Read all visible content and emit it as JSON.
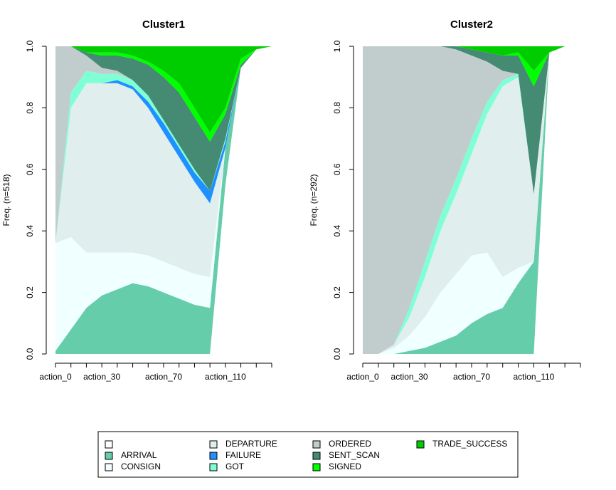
{
  "chart_data": [
    {
      "type": "area",
      "title": "Cluster1",
      "ylabel": "Freq. (n=518)",
      "x": [
        0,
        10,
        20,
        30,
        40,
        50,
        60,
        70,
        80,
        90,
        100,
        110,
        120,
        130,
        140
      ],
      "xlim": [
        0,
        140
      ],
      "xticks": [
        {
          "value": 0,
          "label": "action_0"
        },
        {
          "value": 10,
          "label": null
        },
        {
          "value": 20,
          "label": null
        },
        {
          "value": 30,
          "label": "action_30"
        },
        {
          "value": 40,
          "label": null
        },
        {
          "value": 50,
          "label": null
        },
        {
          "value": 60,
          "label": null
        },
        {
          "value": 70,
          "label": "action_70"
        },
        {
          "value": 80,
          "label": null
        },
        {
          "value": 90,
          "label": null
        },
        {
          "value": 100,
          "label": null
        },
        {
          "value": 110,
          "label": "action_110"
        },
        {
          "value": 120,
          "label": null
        },
        {
          "value": 130,
          "label": null
        },
        {
          "value": 140,
          "label": null
        }
      ],
      "ylim": [
        0,
        1
      ],
      "yticks": [
        {
          "value": 0,
          "label": "0.0"
        },
        0.2,
        0.4,
        0.6,
        0.8,
        {
          "value": 1,
          "label": "1.0"
        }
      ],
      "series": [
        {
          "name": null,
          "color": "#ffffff",
          "values": [
            0,
            0,
            0,
            0,
            0,
            0,
            0,
            0,
            0,
            0,
            0,
            0.55,
            0.93,
            0.99,
            1
          ]
        },
        {
          "name": "ARRIVAL",
          "color": "#66cdaa",
          "values": [
            0.01,
            0.08,
            0.15,
            0.19,
            0.21,
            0.23,
            0.22,
            0.2,
            0.18,
            0.16,
            0.15,
            0.12,
            0,
            0,
            0
          ]
        },
        {
          "name": "CONSIGN",
          "color": "#f0ffff",
          "values": [
            0.35,
            0.3,
            0.18,
            0.14,
            0.12,
            0.1,
            0.1,
            0.1,
            0.1,
            0.1,
            0.1,
            0,
            0,
            0,
            0
          ]
        },
        {
          "name": "DEPARTURE",
          "color": "#e0eeee",
          "values": [
            0,
            0.42,
            0.55,
            0.55,
            0.55,
            0.53,
            0.48,
            0.42,
            0.36,
            0.3,
            0.24,
            0,
            0,
            0,
            0
          ]
        },
        {
          "name": "FAILURE",
          "color": "#1e90ff",
          "values": [
            0,
            0,
            0,
            0,
            0.01,
            0.01,
            0.02,
            0.03,
            0.03,
            0.03,
            0.04,
            0.02,
            0,
            0,
            0
          ]
        },
        {
          "name": "GOT",
          "color": "#7fffd4",
          "values": [
            0,
            0.05,
            0.04,
            0.03,
            0.02,
            0.02,
            0.02,
            0.01,
            0.01,
            0.01,
            0,
            0.01,
            0,
            0,
            0
          ]
        },
        {
          "name": "ORDERED",
          "color": "#c1cdcd",
          "values": [
            0.64,
            0.15,
            0.05,
            0.02,
            0.01,
            0,
            0,
            0,
            0,
            0,
            0,
            0,
            0,
            0,
            0
          ]
        },
        {
          "name": "SENT_SCAN",
          "color": "#458b74",
          "values": [
            0,
            0,
            0.01,
            0.04,
            0.05,
            0.07,
            0.1,
            0.14,
            0.17,
            0.17,
            0.16,
            0.08,
            0.01,
            0,
            0
          ]
        },
        {
          "name": "SIGNED",
          "color": "#00ff00",
          "values": [
            0,
            0,
            0,
            0.01,
            0.01,
            0.01,
            0.01,
            0.02,
            0.03,
            0.03,
            0.03,
            0.02,
            0.02,
            0,
            0
          ]
        },
        {
          "name": "TRADE_SUCCESS",
          "color": "#00cd00",
          "values": [
            0,
            0,
            0.02,
            0.02,
            0.02,
            0.03,
            0.05,
            0.08,
            0.12,
            0.2,
            0.28,
            0.2,
            0.04,
            0.01,
            0
          ]
        }
      ]
    },
    {
      "type": "area",
      "title": "Cluster2",
      "ylabel": "Freq. (n=292)",
      "x": [
        0,
        10,
        20,
        30,
        40,
        50,
        60,
        70,
        80,
        90,
        100,
        110,
        120,
        130,
        140
      ],
      "xlim": [
        0,
        140
      ],
      "xticks": [
        {
          "value": 0,
          "label": "action_0"
        },
        {
          "value": 10,
          "label": null
        },
        {
          "value": 20,
          "label": null
        },
        {
          "value": 30,
          "label": "action_30"
        },
        {
          "value": 40,
          "label": null
        },
        {
          "value": 50,
          "label": null
        },
        {
          "value": 60,
          "label": null
        },
        {
          "value": 70,
          "label": "action_70"
        },
        {
          "value": 80,
          "label": null
        },
        {
          "value": 90,
          "label": null
        },
        {
          "value": 100,
          "label": null
        },
        {
          "value": 110,
          "label": "action_110"
        },
        {
          "value": 120,
          "label": null
        },
        {
          "value": 130,
          "label": null
        },
        {
          "value": 140,
          "label": null
        }
      ],
      "ylim": [
        0,
        1
      ],
      "yticks": [
        {
          "value": 0,
          "label": "0.0"
        },
        0.2,
        0.4,
        0.6,
        0.8,
        {
          "value": 1,
          "label": "1.0"
        }
      ],
      "series": [
        {
          "values": [
            0,
            0,
            0,
            0,
            0,
            0,
            0,
            0,
            0,
            0,
            0,
            0,
            0.98,
            1,
            1
          ]
        },
        {
          "values": [
            0,
            0,
            0,
            0.01,
            0.02,
            0.04,
            0.06,
            0.1,
            0.13,
            0.15,
            0.23,
            0.3,
            0,
            0,
            0
          ]
        },
        {
          "values": [
            0,
            0,
            0.02,
            0.05,
            0.1,
            0.16,
            0.2,
            0.22,
            0.2,
            0.1,
            0.05,
            0,
            0,
            0,
            0
          ]
        },
        {
          "values": [
            0,
            0,
            0.01,
            0.06,
            0.13,
            0.2,
            0.26,
            0.33,
            0.45,
            0.62,
            0.62,
            0.22,
            0,
            0,
            0
          ]
        },
        {
          "values": [
            0,
            0,
            0,
            0,
            0,
            0,
            0,
            0,
            0,
            0,
            0,
            0,
            0,
            0,
            0
          ]
        },
        {
          "values": [
            0,
            0,
            0,
            0.03,
            0.05,
            0.05,
            0.05,
            0.05,
            0.04,
            0.02,
            0.01,
            0,
            0,
            0,
            0
          ]
        },
        {
          "values": [
            1,
            1,
            0.97,
            0.85,
            0.7,
            0.55,
            0.42,
            0.27,
            0.13,
            0.03,
            0,
            0,
            0,
            0,
            0
          ]
        },
        {
          "values": [
            0,
            0,
            0,
            0,
            0,
            0,
            0.01,
            0.02,
            0.03,
            0.05,
            0.06,
            0.35,
            0,
            0,
            0
          ]
        },
        {
          "values": [
            0,
            0,
            0,
            0,
            0,
            0,
            0,
            0,
            0,
            0,
            0.01,
            0.05,
            0,
            0,
            0
          ]
        },
        {
          "values": [
            0,
            0,
            0,
            0,
            0,
            0,
            0,
            0.01,
            0.02,
            0.03,
            0.02,
            0.08,
            0.02,
            0,
            0
          ]
        }
      ]
    }
  ]
}
